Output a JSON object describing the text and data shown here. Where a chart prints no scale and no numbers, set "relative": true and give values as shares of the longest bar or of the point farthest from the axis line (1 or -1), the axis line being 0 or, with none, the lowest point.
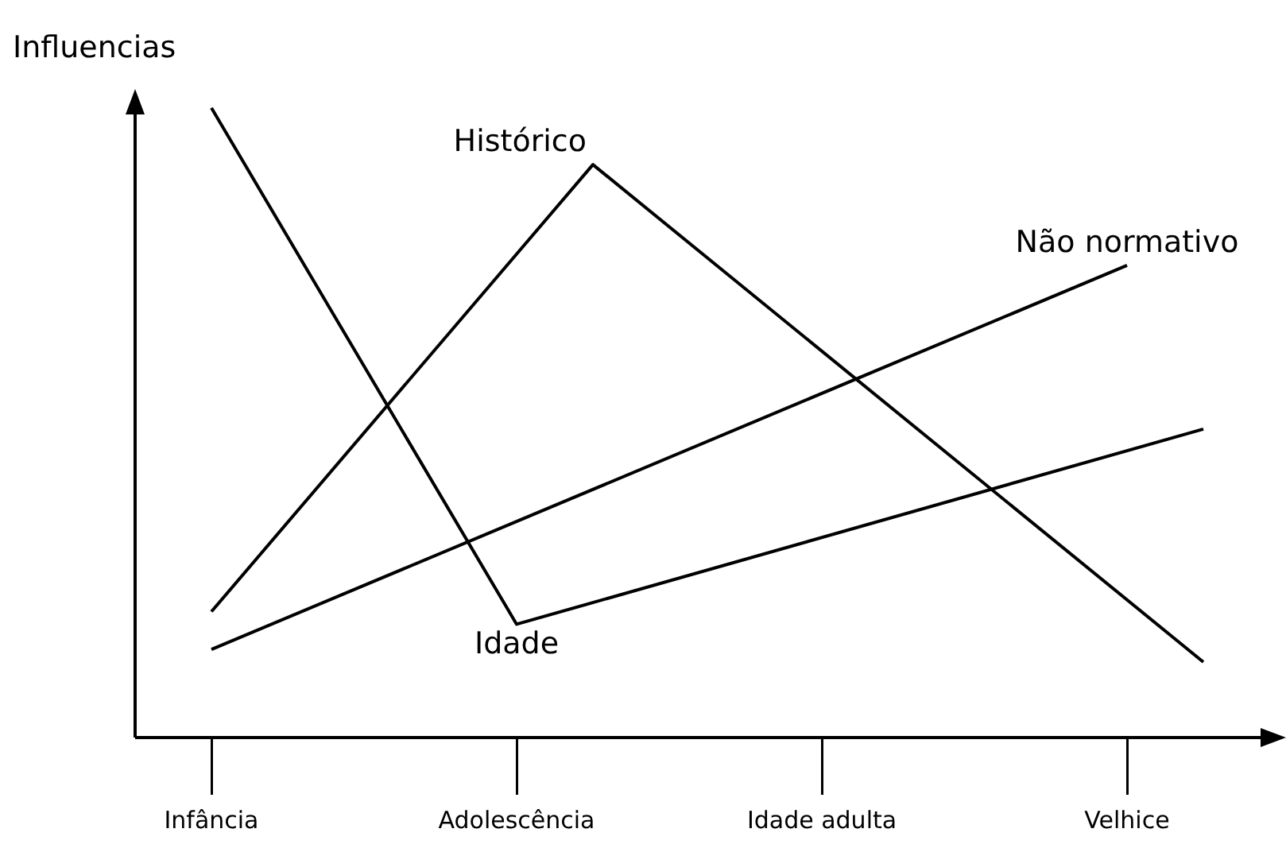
{
  "chart_data": {
    "type": "line",
    "relative": true,
    "ylabel": "Influencias",
    "categories": [
      "Infância",
      null,
      null,
      null,
      "Adolescência",
      null,
      null,
      null,
      "Idade adulta",
      null,
      null,
      null,
      "Velhice",
      null
    ],
    "tick_labels": "x",
    "grid": false,
    "legend": false,
    "marker": "none",
    "line_style": "solid",
    "series": [
      {
        "name": "Idade",
        "color": "#000000",
        "values": [
          1,
          null,
          null,
          null,
          0.18,
          null,
          null,
          null,
          null,
          null,
          null,
          null,
          null,
          0.49
        ]
      },
      {
        "name": "Histórico",
        "color": "#000000",
        "values": [
          0.2,
          null,
          null,
          null,
          null,
          0.91,
          null,
          null,
          null,
          null,
          null,
          null,
          null,
          0.12
        ]
      },
      {
        "name": "Não normativo",
        "color": "#000000",
        "values": [
          0.14,
          null,
          null,
          null,
          null,
          null,
          null,
          null,
          null,
          null,
          null,
          null,
          0.75,
          null
        ]
      }
    ]
  }
}
